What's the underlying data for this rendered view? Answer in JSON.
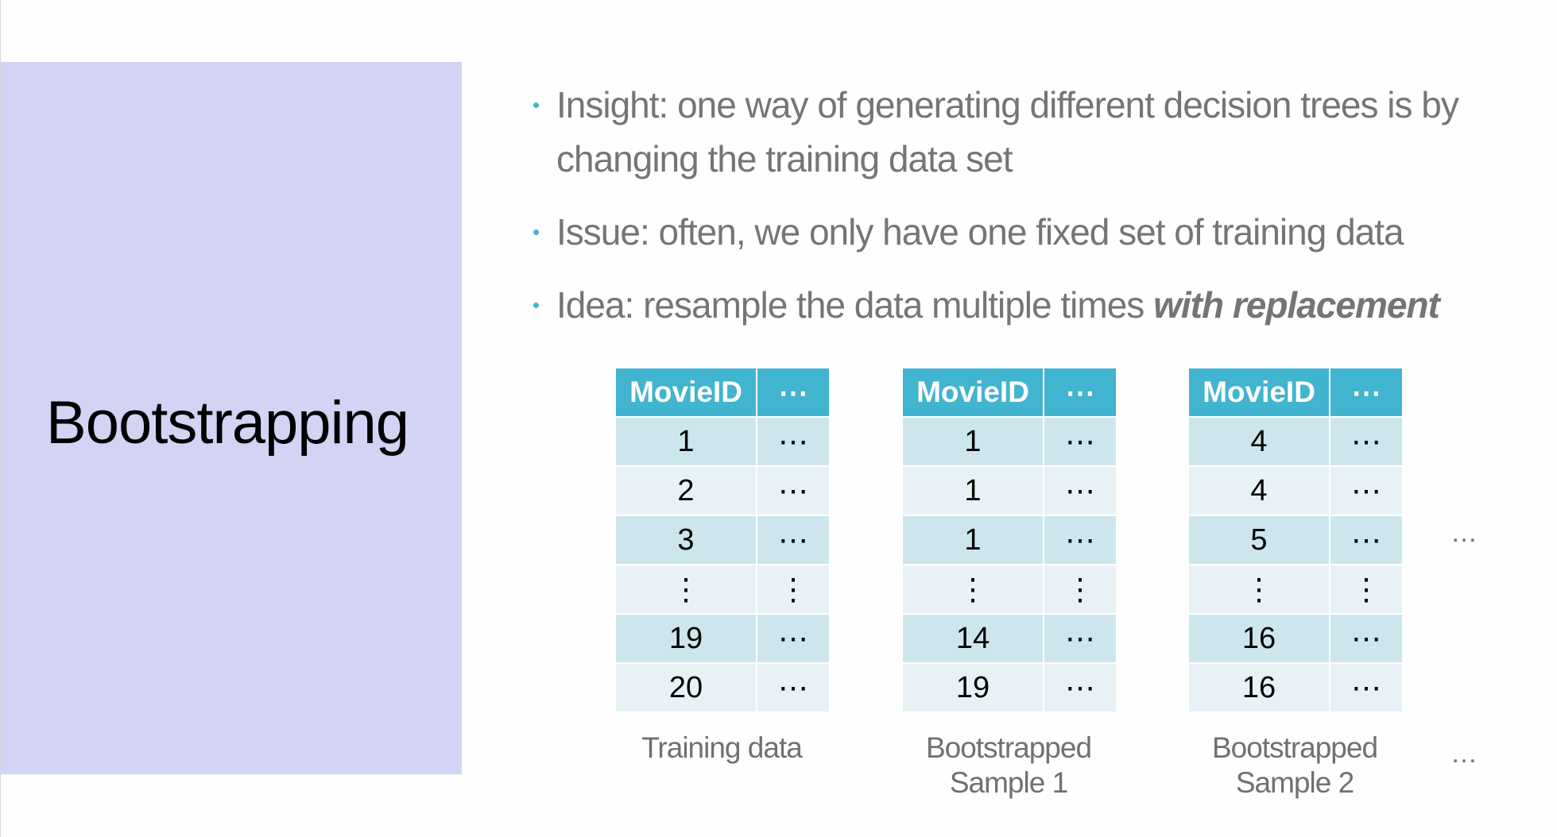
{
  "slide": {
    "title": "Bootstrapping",
    "panel_color": "#d3d3f3",
    "accent_color": "#41b4cf",
    "bullet_glyph": "•",
    "bullets": [
      {
        "text": "Insight: one way of generating different decision trees is by changing the training data set",
        "emphasis": ""
      },
      {
        "text": "Issue: often, we only have one fixed set of training data",
        "emphasis": ""
      },
      {
        "text": "Idea: resample the data multiple times ",
        "emphasis": "with replacement"
      }
    ],
    "tables": [
      {
        "header": [
          "MovieID",
          "⋯"
        ],
        "rows": [
          [
            "1",
            "⋯"
          ],
          [
            "2",
            "⋯"
          ],
          [
            "3",
            "⋯"
          ],
          [
            "⋮",
            "⋮"
          ],
          [
            "19",
            "⋯"
          ],
          [
            "20",
            "⋯"
          ]
        ],
        "caption_lines": [
          "Training data"
        ]
      },
      {
        "header": [
          "MovieID",
          "⋯"
        ],
        "rows": [
          [
            "1",
            "⋯"
          ],
          [
            "1",
            "⋯"
          ],
          [
            "1",
            "⋯"
          ],
          [
            "⋮",
            "⋮"
          ],
          [
            "14",
            "⋯"
          ],
          [
            "19",
            "⋯"
          ]
        ],
        "caption_lines": [
          "Bootstrapped",
          "Sample 1"
        ]
      },
      {
        "header": [
          "MovieID",
          "⋯"
        ],
        "rows": [
          [
            "4",
            "⋯"
          ],
          [
            "4",
            "⋯"
          ],
          [
            "5",
            "⋯"
          ],
          [
            "⋮",
            "⋮"
          ],
          [
            "16",
            "⋯"
          ],
          [
            "16",
            "⋯"
          ]
        ],
        "caption_lines": [
          "Bootstrapped",
          "Sample 2"
        ]
      }
    ],
    "trailing_ellipsis": [
      "…",
      "…"
    ]
  }
}
